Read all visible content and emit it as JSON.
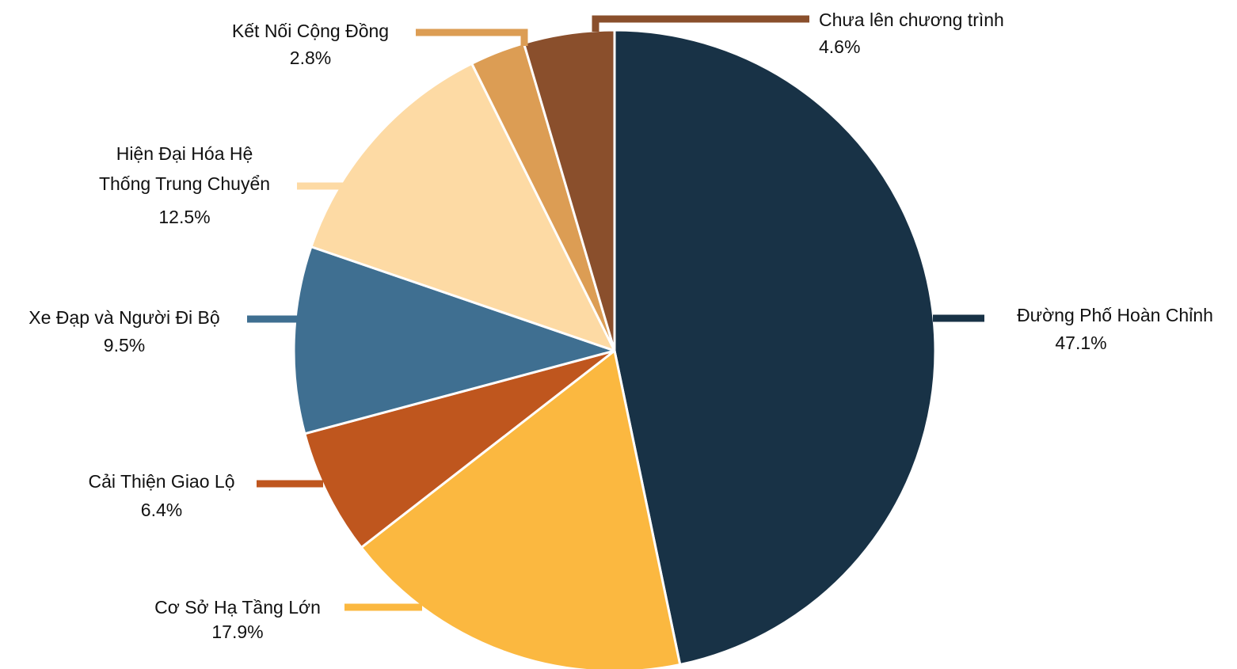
{
  "chart_data": {
    "type": "pie",
    "title": "",
    "slices": [
      {
        "label": "Đường Phố Hoàn Chỉnh",
        "value": 47.1,
        "value_label": "47.1%",
        "color": "#183246"
      },
      {
        "label": "Cơ Sở Hạ Tầng Lớn",
        "value": 17.9,
        "value_label": "17.9%",
        "color": "#fbb840"
      },
      {
        "label": "Cải Thiện Giao Lộ",
        "value": 6.4,
        "value_label": "6.4%",
        "color": "#bf561e"
      },
      {
        "label": "Xe Đạp và Người Đi Bộ",
        "value": 9.5,
        "value_label": "9.5%",
        "color": "#3f6f91"
      },
      {
        "label_lines": [
          "Hiện Đại Hóa Hệ",
          "Thống Trung Chuyển"
        ],
        "value": 12.5,
        "value_label": "12.5%",
        "color": "#fddaa4"
      },
      {
        "label": "Kết Nối Cộng Đồng",
        "value": 2.8,
        "value_label": "2.8%",
        "color": "#dc9d54"
      },
      {
        "label": "Chưa lên chương trình",
        "value": 4.6,
        "value_label": "4.6%",
        "color": "#8a4f2c"
      }
    ]
  }
}
